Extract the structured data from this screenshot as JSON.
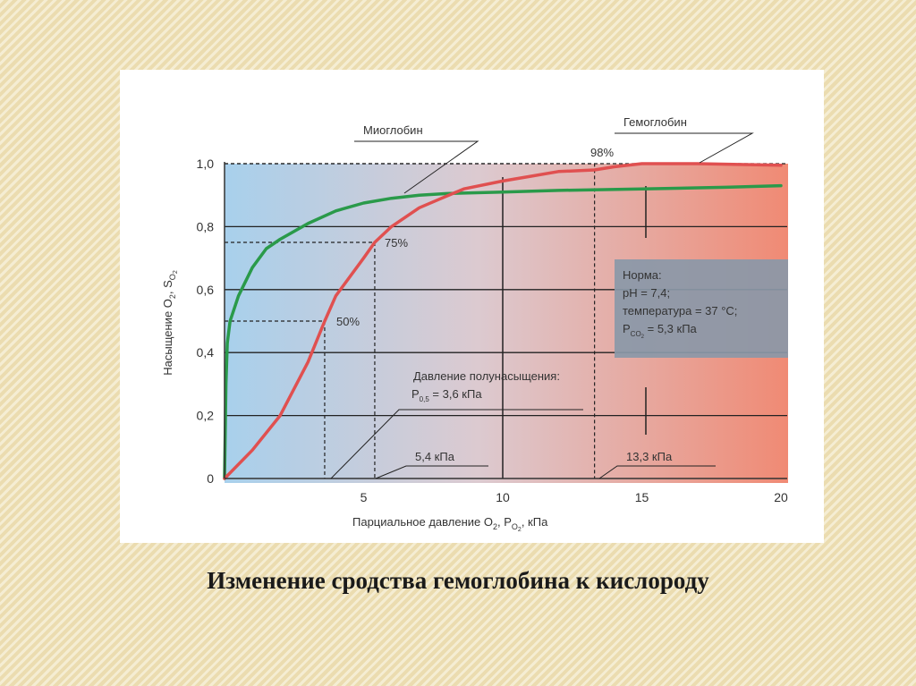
{
  "caption": "Изменение сродства гемоглобина к кислороду",
  "chart_data": {
    "type": "line",
    "title": "",
    "xlabel": "Парциальное давление O",
    "xlabel_sub": "2",
    "xlabel_mid": ", P",
    "xlabel_sub2": "O",
    "xlabel_sub3": "2",
    "xlabel_end": ", кПа",
    "ylabel": "Насыщение O",
    "ylabel_sub": "2",
    "ylabel_mid": ", S",
    "ylabel_sub2": "O",
    "ylabel_sub3": "2",
    "xlim": [
      0,
      20
    ],
    "ylim": [
      0,
      1.0
    ],
    "x_ticks": [
      5,
      10,
      15,
      20
    ],
    "x_tick_labels": [
      "5",
      "10",
      "15",
      "20"
    ],
    "y_ticks": [
      0,
      0.2,
      0.4,
      0.6,
      0.8,
      1.0
    ],
    "y_tick_labels": [
      "0",
      "0,2",
      "0,4",
      "0,6",
      "0,8",
      "1,0"
    ],
    "grid": true,
    "series": [
      {
        "name": "Миоглобин",
        "color": "#2a9a4a",
        "points": [
          [
            0,
            0
          ],
          [
            0.05,
            0.3
          ],
          [
            0.1,
            0.43
          ],
          [
            0.2,
            0.5
          ],
          [
            0.5,
            0.58
          ],
          [
            1,
            0.67
          ],
          [
            1.5,
            0.73
          ],
          [
            2,
            0.76
          ],
          [
            3,
            0.81
          ],
          [
            4,
            0.85
          ],
          [
            5,
            0.875
          ],
          [
            6,
            0.89
          ],
          [
            7,
            0.9
          ],
          [
            8,
            0.905
          ],
          [
            10,
            0.91
          ],
          [
            12,
            0.915
          ],
          [
            15,
            0.92
          ],
          [
            18,
            0.925
          ],
          [
            20,
            0.93
          ]
        ]
      },
      {
        "name": "Гемоглобин",
        "color": "#e05050",
        "points": [
          [
            0,
            0
          ],
          [
            1,
            0.09
          ],
          [
            2,
            0.2
          ],
          [
            3,
            0.37
          ],
          [
            3.6,
            0.5
          ],
          [
            4,
            0.58
          ],
          [
            5,
            0.7
          ],
          [
            5.4,
            0.75
          ],
          [
            6,
            0.8
          ],
          [
            7,
            0.86
          ],
          [
            7.8,
            0.89
          ],
          [
            8.6,
            0.92
          ],
          [
            10,
            0.945
          ],
          [
            11,
            0.96
          ],
          [
            12,
            0.975
          ],
          [
            13.3,
            0.98
          ],
          [
            14,
            0.99
          ],
          [
            15,
            1.0
          ],
          [
            17,
            1.0
          ],
          [
            20,
            0.995
          ]
        ]
      }
    ],
    "annotations": {
      "myoglobin_label": "Миоглобин",
      "hemoglobin_label": "Гемоглобин",
      "pct_98": "98%",
      "pct_75": "75%",
      "pct_50": "50%",
      "half_sat_title": "Давление полунасыщения:",
      "half_sat_p": "P",
      "half_sat_sub": "0,5",
      "half_sat_value": "= 3,6 кПа",
      "val_54": "5,4 кПа",
      "val_133": "13,3 кПа"
    },
    "norm_box": {
      "line1": "Норма:",
      "line2": "pH = 7,4;",
      "line3": "температура = 37 °C;",
      "line4_p": "P",
      "line4_sub": "CO",
      "line4_sub2": "2",
      "line4_value": "= 5,3 кПа",
      "color": "#8a98a8"
    },
    "reference_lines": [
      {
        "x": 3.6,
        "y": 0.5
      },
      {
        "x": 5.4,
        "y": 0.75
      },
      {
        "x": 13.3,
        "y": 0.98
      },
      {
        "x": 10
      }
    ]
  }
}
